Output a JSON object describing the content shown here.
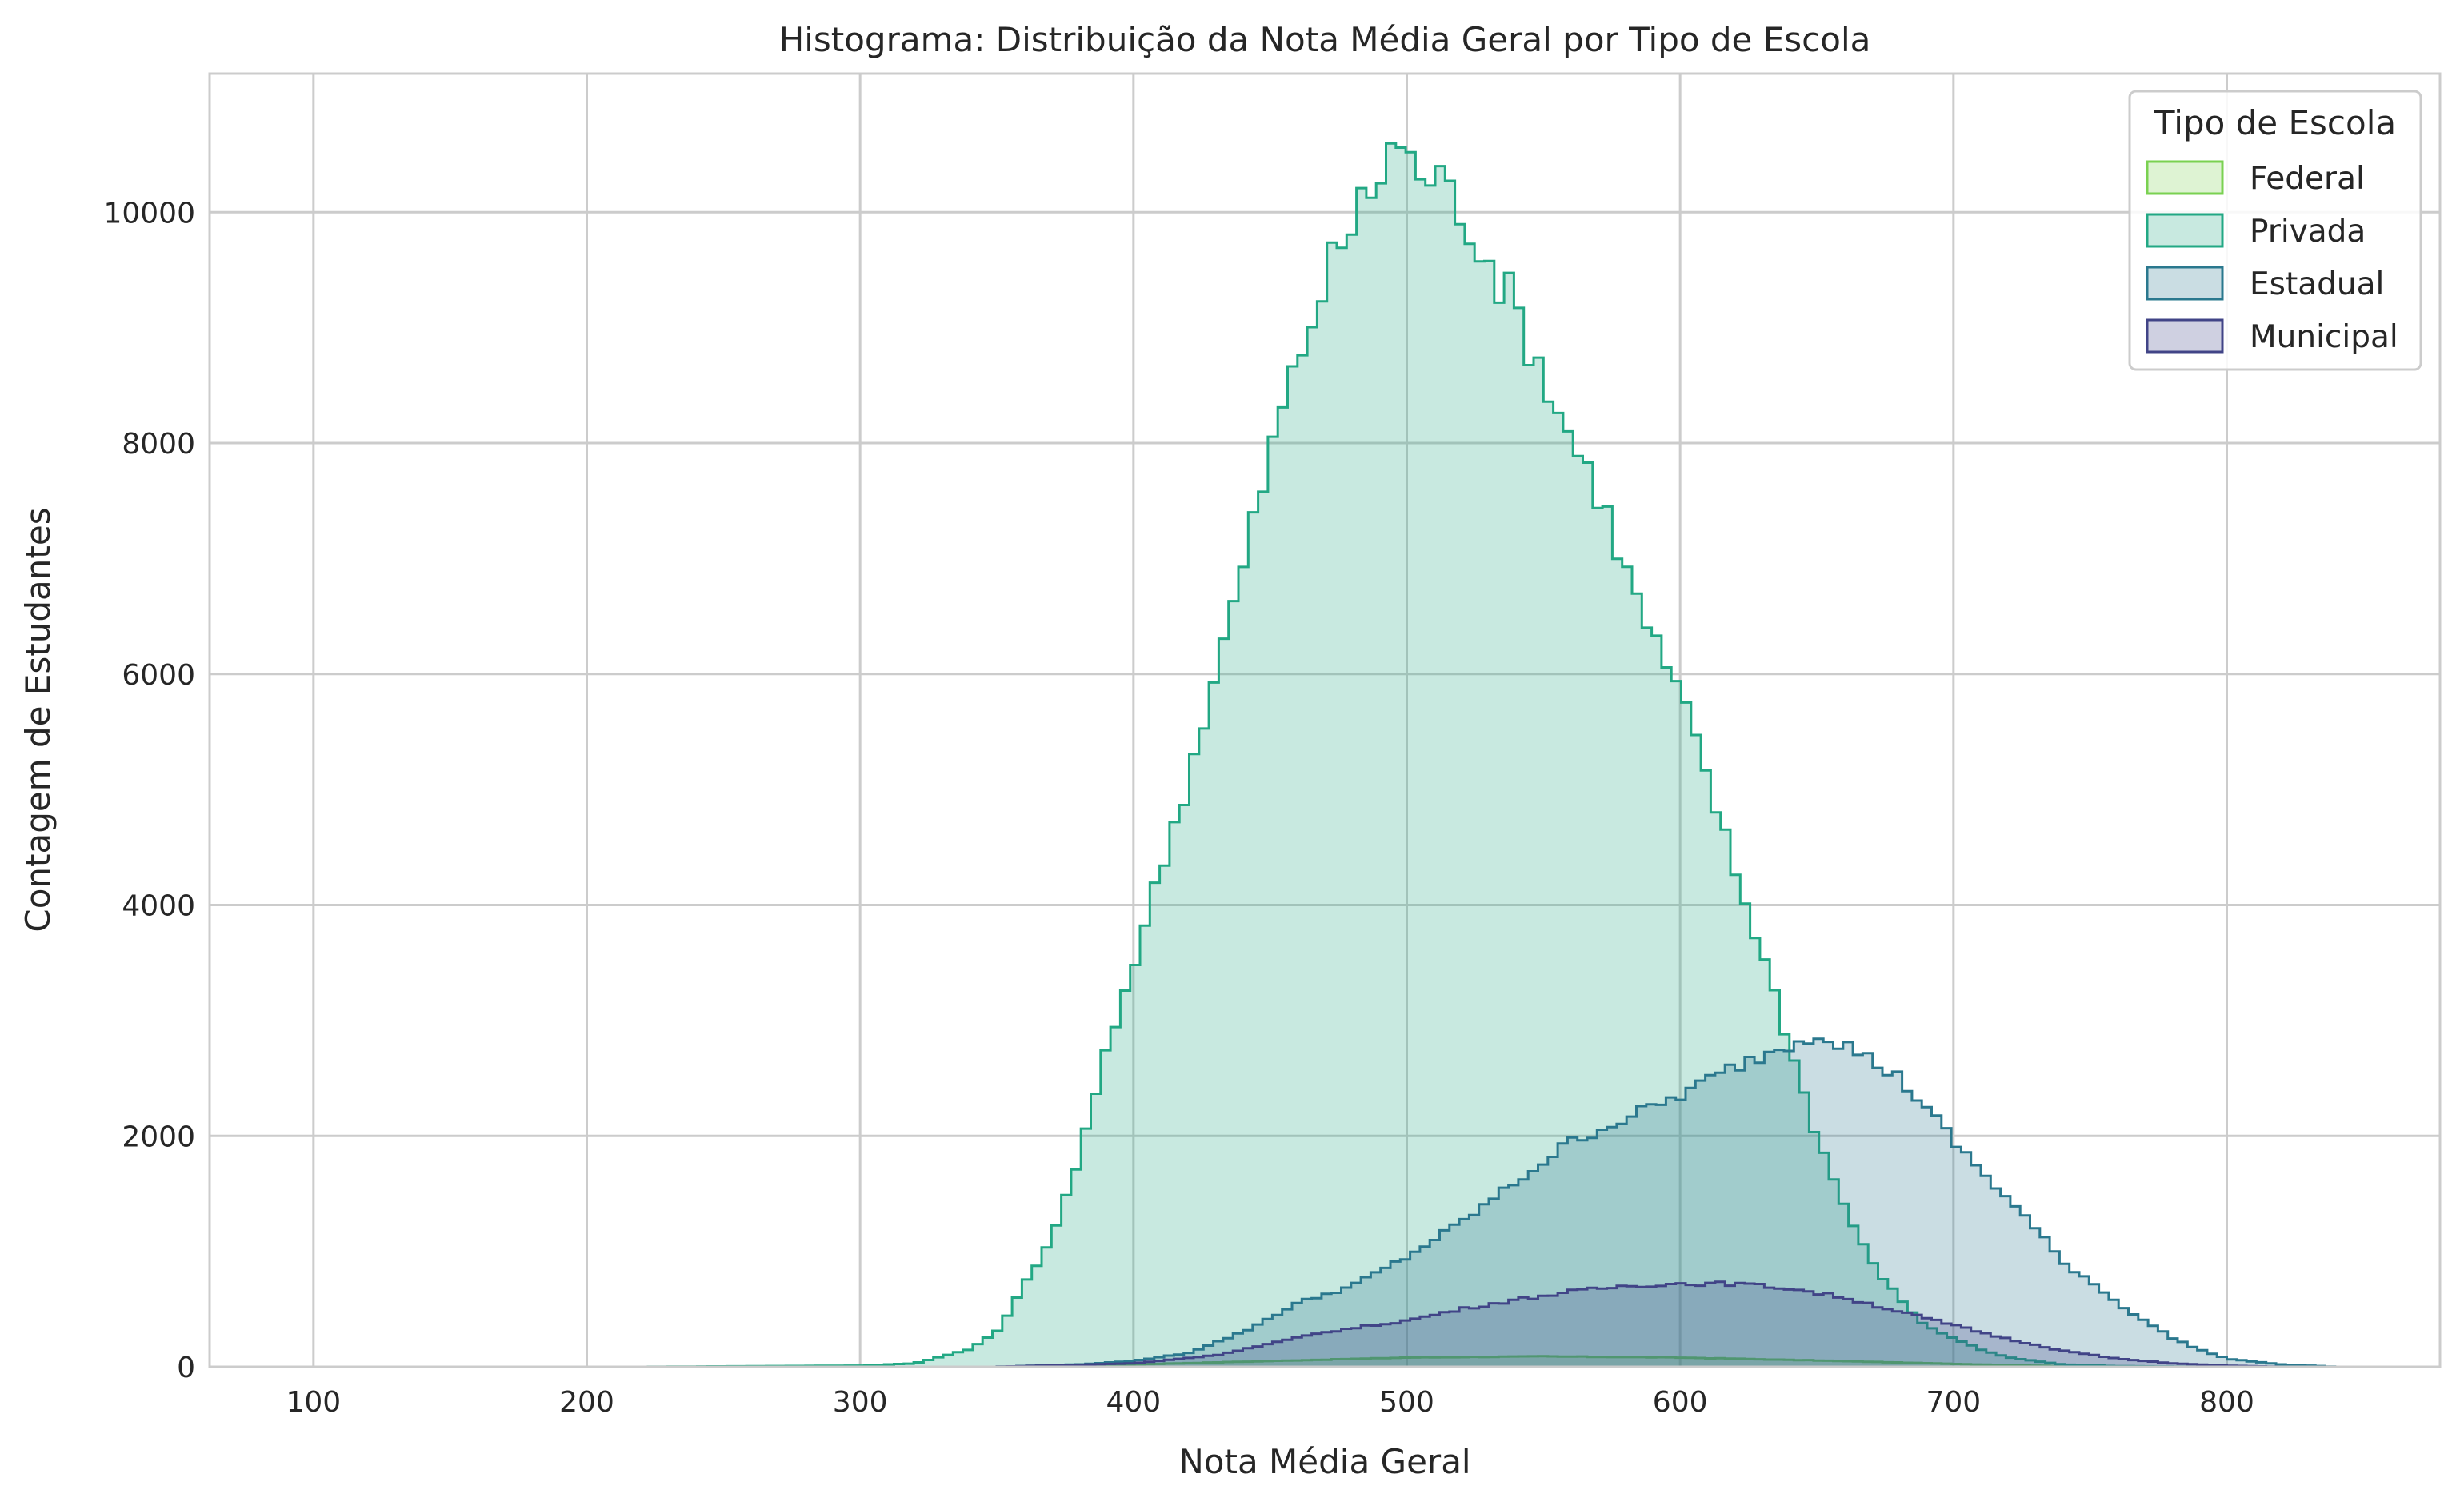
{
  "chart_data": {
    "type": "area",
    "title": "Histograma: Distribuição da Nota Média Geral por Tipo de Escola",
    "xlabel": "Nota Média Geral",
    "ylabel": "Contagem de Estudantes",
    "xlim": [
      62,
      878
    ],
    "ylim": [
      0,
      11200
    ],
    "x_ticks": [
      100,
      200,
      300,
      400,
      500,
      600,
      700,
      800
    ],
    "y_ticks": [
      0,
      2000,
      4000,
      6000,
      8000,
      10000
    ],
    "x_tick_labels": [
      "100",
      "200",
      "300",
      "400",
      "500",
      "600",
      "700",
      "800"
    ],
    "y_tick_labels": [
      "0",
      "2000",
      "4000",
      "6000",
      "8000",
      "10000"
    ],
    "grid": true,
    "legend": {
      "title": "Tipo de Escola",
      "placement": "top-right"
    },
    "series": [
      {
        "name": "Federal",
        "color": "#7ad151",
        "x": [
          350,
          400,
          450,
          500,
          550,
          600,
          650,
          700,
          750
        ],
        "values": [
          0,
          20,
          50,
          80,
          90,
          80,
          55,
          25,
          0
        ]
      },
      {
        "name": "Privada",
        "color": "#22a884",
        "x": [
          100,
          220,
          300,
          320,
          340,
          350,
          360,
          370,
          380,
          390,
          400,
          410,
          420,
          430,
          440,
          450,
          460,
          470,
          480,
          490,
          495,
          500,
          510,
          520,
          530,
          540,
          550,
          560,
          570,
          580,
          590,
          600,
          610,
          620,
          630,
          640,
          650,
          660,
          670,
          680,
          690,
          700,
          710,
          720,
          740,
          760,
          800
        ],
        "values": [
          0,
          0,
          10,
          30,
          150,
          300,
          700,
          1100,
          1800,
          2700,
          3500,
          4300,
          5100,
          6000,
          6900,
          7900,
          8700,
          9400,
          9900,
          10300,
          10650,
          10450,
          10300,
          10050,
          9600,
          9150,
          8600,
          8050,
          7600,
          6900,
          6300,
          5800,
          5100,
          4300,
          3600,
          2800,
          2000,
          1400,
          900,
          600,
          350,
          250,
          150,
          80,
          20,
          5,
          0
        ]
      },
      {
        "name": "Estadual",
        "color": "#2a788e",
        "x": [
          350,
          380,
          400,
          420,
          440,
          460,
          480,
          500,
          520,
          540,
          560,
          580,
          600,
          620,
          640,
          650,
          660,
          670,
          680,
          690,
          700,
          710,
          720,
          730,
          740,
          750,
          760,
          770,
          780,
          790,
          800,
          820,
          840
        ],
        "values": [
          0,
          20,
          50,
          120,
          300,
          550,
          700,
          950,
          1250,
          1600,
          1950,
          2150,
          2350,
          2600,
          2800,
          2900,
          2800,
          2650,
          2500,
          2250,
          1950,
          1700,
          1450,
          1200,
          900,
          750,
          550,
          400,
          250,
          150,
          70,
          20,
          0
        ]
      },
      {
        "name": "Municipal",
        "color": "#414487",
        "x": [
          350,
          400,
          430,
          450,
          470,
          500,
          520,
          540,
          560,
          580,
          600,
          620,
          640,
          660,
          680,
          700,
          720,
          740,
          760,
          780,
          800,
          820
        ],
        "values": [
          0,
          30,
          100,
          200,
          300,
          400,
          500,
          580,
          650,
          700,
          720,
          720,
          680,
          600,
          480,
          360,
          240,
          140,
          70,
          30,
          10,
          0
        ]
      }
    ]
  }
}
